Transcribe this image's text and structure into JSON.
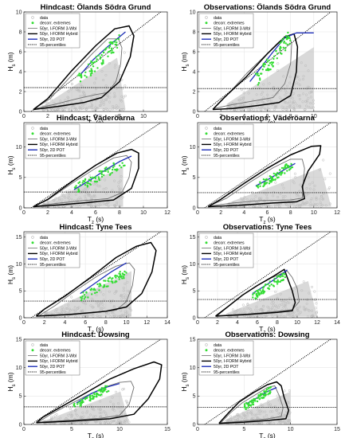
{
  "legend_entries": [
    "data",
    "decorr. extremes",
    "50yr, I-FORM 3-Wbl",
    "50yr, I-FORM Hybrid",
    "50yr, 2D POT",
    "95-percentiles"
  ],
  "colors": {
    "data": "#b9b9b9",
    "extremes": "#33dd33",
    "iform3wbl": "#6e6e6e",
    "iformhybrid": "#000000",
    "pot2d": "#1f2fb8",
    "percentile": "#000000"
  },
  "chart_data": [
    {
      "type": "scatter",
      "title": "Hindcast: Ölands Södra Grund",
      "xlabel": "T_z (s)",
      "ylabel": "H_s (m)",
      "xlim": [
        0,
        12
      ],
      "ylim": [
        0,
        10
      ],
      "xticks": [
        0,
        2,
        4,
        6,
        8,
        10
      ],
      "yticks": [
        0,
        2,
        4,
        6,
        8,
        10
      ],
      "legend": "top-left",
      "percentiles": {
        "hs": 2.4,
        "tz": 6.5
      },
      "contour_3wbl": [
        [
          0.9,
          0.3
        ],
        [
          2.5,
          0.7
        ],
        [
          4.5,
          1.3
        ],
        [
          6.0,
          1.7
        ],
        [
          7.0,
          1.9
        ],
        [
          7.7,
          3.0
        ],
        [
          8.1,
          4.8
        ],
        [
          8.2,
          6.4
        ],
        [
          7.9,
          7.3
        ],
        [
          7.0,
          7.3
        ],
        [
          5.8,
          5.9
        ],
        [
          4.2,
          3.9
        ],
        [
          2.2,
          1.3
        ],
        [
          0.9,
          0.3
        ]
      ],
      "contour_hybrid": [
        [
          0.8,
          0.2
        ],
        [
          2.8,
          0.5
        ],
        [
          5.0,
          0.9
        ],
        [
          6.5,
          1.4
        ],
        [
          8.0,
          3.0
        ],
        [
          8.9,
          5.5
        ],
        [
          9.2,
          7.6
        ],
        [
          8.8,
          8.6
        ],
        [
          7.6,
          8.3
        ],
        [
          6.0,
          6.6
        ],
        [
          4.0,
          4.1
        ],
        [
          2.0,
          1.3
        ],
        [
          0.8,
          0.2
        ]
      ],
      "contour_pot": [
        [
          4.8,
          3.8
        ],
        [
          5.8,
          5.2
        ],
        [
          6.8,
          6.3
        ],
        [
          7.8,
          7.3
        ],
        [
          8.5,
          8.0
        ]
      ],
      "cloud": {
        "tz_min": 1.5,
        "tz_max": 8.5,
        "hs_max": 7.0
      },
      "extremes": {
        "tz_min": 4.5,
        "tz_max": 8.0,
        "hs_min": 3.0,
        "hs_max": 7.2
      }
    },
    {
      "type": "scatter",
      "title": "Observations: Ölands Södra Grund",
      "xlabel": "T_z (s)",
      "ylabel": "H_s (m)",
      "xlim": [
        0,
        12
      ],
      "ylim": [
        0,
        10
      ],
      "xticks": [
        0,
        2,
        4,
        6,
        8,
        10
      ],
      "yticks": [
        0,
        2,
        4,
        6,
        8,
        10
      ],
      "legend": "top-left",
      "percentiles": {
        "hs": 2.3,
        "tz": 6.6
      },
      "contour_3wbl": [
        [
          1.4,
          0.3
        ],
        [
          3.0,
          0.7
        ],
        [
          5.0,
          1.1
        ],
        [
          6.5,
          1.4
        ],
        [
          7.5,
          2.8
        ],
        [
          8.0,
          4.8
        ],
        [
          8.1,
          6.8
        ],
        [
          7.9,
          7.6
        ],
        [
          7.0,
          7.0
        ],
        [
          5.8,
          5.6
        ],
        [
          4.2,
          3.8
        ],
        [
          2.5,
          1.6
        ],
        [
          1.4,
          0.3
        ]
      ],
      "contour_hybrid": [
        [
          1.3,
          0.2
        ],
        [
          3.0,
          0.3
        ],
        [
          5.2,
          0.6
        ],
        [
          7.0,
          0.9
        ],
        [
          8.0,
          1.6
        ],
        [
          8.5,
          4.0
        ],
        [
          8.6,
          6.5
        ],
        [
          8.3,
          7.8
        ],
        [
          7.5,
          7.5
        ],
        [
          6.0,
          5.8
        ],
        [
          4.2,
          3.5
        ],
        [
          2.3,
          1.4
        ],
        [
          1.3,
          0.2
        ]
      ],
      "contour_pot": [
        [
          4.5,
          3.0
        ],
        [
          5.5,
          4.5
        ],
        [
          6.5,
          6.0
        ],
        [
          7.5,
          7.4
        ],
        [
          8.5,
          7.9
        ],
        [
          10.0,
          7.9
        ]
      ],
      "cloud": {
        "tz_min": 2.5,
        "tz_max": 10.0,
        "hs_max": 7.6
      },
      "extremes": {
        "tz_min": 5.0,
        "tz_max": 8.0,
        "hs_min": 3.0,
        "hs_max": 7.6
      }
    },
    {
      "type": "scatter",
      "title": "Hindcast: Väderöarna",
      "xlabel": "T_z (s)",
      "ylabel": "H_s (m)",
      "xlim": [
        0,
        12
      ],
      "ylim": [
        0,
        14
      ],
      "xticks": [
        0,
        2,
        4,
        6,
        8,
        10,
        12
      ],
      "yticks": [
        0,
        5,
        10
      ],
      "legend": "top-left",
      "percentiles": {
        "hs": 2.6,
        "tz": 6.0
      },
      "contour_3wbl": [
        [
          0.9,
          0.3
        ],
        [
          3.0,
          0.8
        ],
        [
          5.0,
          1.2
        ],
        [
          7.0,
          1.5
        ],
        [
          8.2,
          2.5
        ],
        [
          8.8,
          5.0
        ],
        [
          9.0,
          7.5
        ],
        [
          8.6,
          8.6
        ],
        [
          7.5,
          8.2
        ],
        [
          6.0,
          6.5
        ],
        [
          4.0,
          4.0
        ],
        [
          2.0,
          1.3
        ],
        [
          0.9,
          0.3
        ]
      ],
      "contour_hybrid": [
        [
          0.8,
          0.2
        ],
        [
          3.0,
          0.5
        ],
        [
          5.5,
          0.9
        ],
        [
          7.5,
          1.3
        ],
        [
          9.0,
          3.2
        ],
        [
          9.6,
          6.5
        ],
        [
          9.6,
          9.0
        ],
        [
          9.0,
          9.6
        ],
        [
          7.8,
          9.0
        ],
        [
          6.0,
          7.0
        ],
        [
          4.0,
          4.3
        ],
        [
          2.0,
          1.4
        ],
        [
          0.8,
          0.2
        ]
      ],
      "contour_pot": [
        [
          4.2,
          3.0
        ],
        [
          5.5,
          4.5
        ],
        [
          6.8,
          6.2
        ],
        [
          8.0,
          7.6
        ],
        [
          9.0,
          8.5
        ]
      ],
      "cloud": {
        "tz_min": 1.5,
        "tz_max": 8.3,
        "hs_max": 8.0
      },
      "extremes": {
        "tz_min": 4.2,
        "tz_max": 8.5,
        "hs_min": 3.0,
        "hs_max": 7.6
      }
    },
    {
      "type": "scatter",
      "title": "Observations: Väderöarna",
      "xlabel": "T_z (s)",
      "ylabel": "H_s (m)",
      "xlim": [
        0,
        12
      ],
      "ylim": [
        0,
        14
      ],
      "xticks": [
        0,
        2,
        4,
        6,
        8,
        10,
        12
      ],
      "yticks": [
        0,
        5,
        10
      ],
      "legend": "top-left",
      "percentiles": {
        "hs": 2.5,
        "tz": 6.8
      },
      "contour_3wbl": [
        [
          1.0,
          0.3
        ],
        [
          3.0,
          0.8
        ],
        [
          5.5,
          1.2
        ],
        [
          8.0,
          1.3
        ],
        [
          9.0,
          1.6
        ],
        [
          9.1,
          4.0
        ],
        [
          9.2,
          6.5
        ],
        [
          9.0,
          8.0
        ],
        [
          8.0,
          8.0
        ],
        [
          6.5,
          6.6
        ],
        [
          4.5,
          4.2
        ],
        [
          2.5,
          1.6
        ],
        [
          1.0,
          0.3
        ]
      ],
      "contour_hybrid": [
        [
          0.9,
          0.2
        ],
        [
          3.5,
          0.4
        ],
        [
          6.5,
          0.8
        ],
        [
          8.5,
          1.0
        ],
        [
          9.2,
          1.5
        ],
        [
          9.0,
          3.5
        ],
        [
          9.5,
          6.0
        ],
        [
          10.5,
          8.8
        ],
        [
          10.6,
          10.2
        ],
        [
          9.8,
          10.1
        ],
        [
          8.0,
          8.7
        ],
        [
          6.0,
          6.5
        ],
        [
          4.0,
          4.0
        ],
        [
          2.0,
          1.4
        ],
        [
          0.9,
          0.2
        ]
      ],
      "contour_pot": [
        [
          5.0,
          3.6
        ],
        [
          6.2,
          4.8
        ],
        [
          7.4,
          6.2
        ],
        [
          8.4,
          7.3
        ]
      ],
      "cloud": {
        "tz_min": 2.5,
        "tz_max": 11.5,
        "hs_max": 8.5
      },
      "extremes": {
        "tz_min": 5.0,
        "tz_max": 8.2,
        "hs_min": 3.2,
        "hs_max": 7.2
      }
    },
    {
      "type": "scatter",
      "title": "Hindcast: Tyne Tees",
      "xlabel": "T_z (s)",
      "ylabel": "H_s (m)",
      "xlim": [
        0,
        14
      ],
      "ylim": [
        0,
        16
      ],
      "xticks": [
        0,
        2,
        4,
        6,
        8,
        10,
        12,
        14
      ],
      "yticks": [
        0,
        5,
        10,
        15
      ],
      "legend": "top-left",
      "percentiles": {
        "hs": 3.1,
        "tz": 7.1
      },
      "contour_3wbl": [
        [
          1.5,
          0.4
        ],
        [
          4.0,
          0.6
        ],
        [
          7.0,
          1.0
        ],
        [
          9.0,
          1.4
        ],
        [
          10.0,
          3.0
        ],
        [
          10.6,
          6.0
        ],
        [
          10.8,
          9.0
        ],
        [
          10.3,
          10.2
        ],
        [
          9.0,
          9.6
        ],
        [
          7.2,
          7.8
        ],
        [
          5.0,
          5.0
        ],
        [
          3.0,
          2.2
        ],
        [
          1.5,
          0.4
        ]
      ],
      "contour_hybrid": [
        [
          1.2,
          0.3
        ],
        [
          4.5,
          0.6
        ],
        [
          8.0,
          1.2
        ],
        [
          10.0,
          2.0
        ],
        [
          11.5,
          4.5
        ],
        [
          12.5,
          8.5
        ],
        [
          12.9,
          12.5
        ],
        [
          12.4,
          14.0
        ],
        [
          11.0,
          13.3
        ],
        [
          9.0,
          11.2
        ],
        [
          6.5,
          7.5
        ],
        [
          4.0,
          4.0
        ],
        [
          2.0,
          1.6
        ],
        [
          1.2,
          0.3
        ]
      ],
      "contour_pot": [
        [
          5.5,
          4.5
        ],
        [
          7.0,
          6.5
        ],
        [
          8.5,
          8.5
        ],
        [
          10.0,
          10.2
        ]
      ],
      "cloud": {
        "tz_min": 2.0,
        "tz_max": 10.5,
        "hs_max": 10.2
      },
      "extremes": {
        "tz_min": 5.5,
        "tz_max": 10.0,
        "hs_min": 3.8,
        "hs_max": 8.4
      }
    },
    {
      "type": "scatter",
      "title": "Observations: Tyne Tees",
      "xlabel": "T_z (s)",
      "ylabel": "H_s (m)",
      "xlim": [
        0,
        14
      ],
      "ylim": [
        0,
        16
      ],
      "xticks": [
        0,
        2,
        4,
        6,
        8,
        10,
        12,
        14
      ],
      "yticks": [
        0,
        5,
        10,
        15
      ],
      "legend": "top-left",
      "percentiles": {
        "hs": 3.4,
        "tz": 6.6
      },
      "contour_3wbl": [
        [
          2.0,
          0.4
        ],
        [
          5.0,
          0.7
        ],
        [
          8.0,
          1.2
        ],
        [
          9.5,
          1.5
        ],
        [
          10.2,
          3.0
        ],
        [
          10.0,
          5.5
        ],
        [
          9.5,
          7.5
        ],
        [
          9.0,
          8.7
        ],
        [
          7.5,
          7.5
        ],
        [
          6.0,
          6.0
        ],
        [
          4.5,
          4.2
        ],
        [
          3.0,
          2.0
        ],
        [
          2.0,
          0.4
        ]
      ],
      "contour_hybrid": [
        [
          1.8,
          0.3
        ],
        [
          5.0,
          0.6
        ],
        [
          8.0,
          1.0
        ],
        [
          9.5,
          1.3
        ],
        [
          9.8,
          2.8
        ],
        [
          9.5,
          5.0
        ],
        [
          9.0,
          7.5
        ],
        [
          8.7,
          9.0
        ],
        [
          7.5,
          7.6
        ],
        [
          6.0,
          6.0
        ],
        [
          4.5,
          4.2
        ],
        [
          3.0,
          2.0
        ],
        [
          1.8,
          0.3
        ]
      ],
      "contour_pot": [
        [
          5.5,
          4.5
        ],
        [
          6.8,
          6.0
        ],
        [
          8.0,
          7.5
        ],
        [
          9.0,
          8.9
        ]
      ],
      "cloud": {
        "tz_min": 3.0,
        "tz_max": 12.0,
        "hs_max": 8.8
      },
      "extremes": {
        "tz_min": 5.5,
        "tz_max": 8.8,
        "hs_min": 3.8,
        "hs_max": 8.0
      }
    },
    {
      "type": "scatter",
      "title": "Hindcast: Dowsing",
      "xlabel": "T_z (s)",
      "ylabel": "H_s (m)",
      "xlim": [
        0,
        15
      ],
      "ylim": [
        0,
        15
      ],
      "xticks": [
        0,
        5,
        10,
        15
      ],
      "yticks": [
        0,
        5,
        10,
        15
      ],
      "legend": "top-left",
      "percentiles": {
        "hs": 3.1,
        "tz": 7.0
      },
      "contour_3wbl": [
        [
          1.5,
          0.4
        ],
        [
          4.5,
          0.7
        ],
        [
          8.0,
          1.1
        ],
        [
          10.0,
          1.6
        ],
        [
          11.0,
          3.5
        ],
        [
          11.5,
          6.5
        ],
        [
          11.2,
          7.6
        ],
        [
          10.0,
          7.4
        ],
        [
          8.5,
          6.6
        ],
        [
          6.5,
          5.0
        ],
        [
          4.5,
          3.3
        ],
        [
          2.8,
          1.8
        ],
        [
          1.5,
          0.4
        ]
      ],
      "contour_hybrid": [
        [
          1.3,
          0.3
        ],
        [
          5.0,
          0.6
        ],
        [
          9.0,
          1.0
        ],
        [
          11.5,
          1.8
        ],
        [
          13.0,
          4.5
        ],
        [
          14.2,
          8.0
        ],
        [
          14.4,
          10.5
        ],
        [
          13.6,
          11.0
        ],
        [
          11.5,
          9.8
        ],
        [
          9.0,
          8.0
        ],
        [
          6.5,
          5.6
        ],
        [
          4.0,
          3.2
        ],
        [
          2.0,
          1.3
        ],
        [
          1.3,
          0.3
        ]
      ],
      "contour_pot": [
        [
          5.5,
          3.8
        ],
        [
          7.0,
          5.4
        ],
        [
          8.5,
          6.5
        ],
        [
          10.0,
          7.2
        ]
      ],
      "cloud": {
        "tz_min": 2.0,
        "tz_max": 11.0,
        "hs_max": 7.5
      },
      "extremes": {
        "tz_min": 5.2,
        "tz_max": 9.0,
        "hs_min": 3.2,
        "hs_max": 6.6
      }
    },
    {
      "type": "scatter",
      "title": "Observations: Dowsing",
      "xlabel": "T_z (s)",
      "ylabel": "H_s (m)",
      "xlim": [
        0,
        15
      ],
      "ylim": [
        0,
        15
      ],
      "xticks": [
        0,
        5,
        10,
        15
      ],
      "yticks": [
        0,
        5,
        10,
        15
      ],
      "legend": "top-left",
      "percentiles": {
        "hs": 3.0,
        "tz": 6.6
      },
      "contour_3wbl": [
        [
          2.5,
          0.3
        ],
        [
          5.0,
          0.6
        ],
        [
          7.5,
          1.0
        ],
        [
          9.0,
          1.4
        ],
        [
          9.2,
          3.0
        ],
        [
          8.8,
          5.0
        ],
        [
          8.3,
          6.8
        ],
        [
          7.5,
          6.5
        ],
        [
          6.2,
          5.2
        ],
        [
          4.8,
          3.8
        ],
        [
          3.5,
          2.0
        ],
        [
          2.5,
          0.3
        ]
      ],
      "contour_hybrid": [
        [
          2.3,
          0.2
        ],
        [
          5.0,
          0.4
        ],
        [
          7.5,
          0.7
        ],
        [
          9.5,
          1.0
        ],
        [
          9.8,
          2.5
        ],
        [
          9.3,
          4.8
        ],
        [
          9.0,
          6.8
        ],
        [
          8.5,
          7.5
        ],
        [
          7.5,
          7.0
        ],
        [
          6.0,
          5.6
        ],
        [
          4.5,
          4.0
        ],
        [
          3.3,
          2.0
        ],
        [
          2.3,
          0.2
        ]
      ],
      "contour_pot": [
        [
          5.2,
          3.6
        ],
        [
          6.5,
          4.8
        ],
        [
          7.5,
          5.8
        ],
        [
          8.5,
          6.5
        ]
      ],
      "cloud": {
        "tz_min": 3.0,
        "tz_max": 10.0,
        "hs_max": 6.8
      },
      "extremes": {
        "tz_min": 5.0,
        "tz_max": 8.0,
        "hs_min": 3.0,
        "hs_max": 6.2
      }
    }
  ]
}
